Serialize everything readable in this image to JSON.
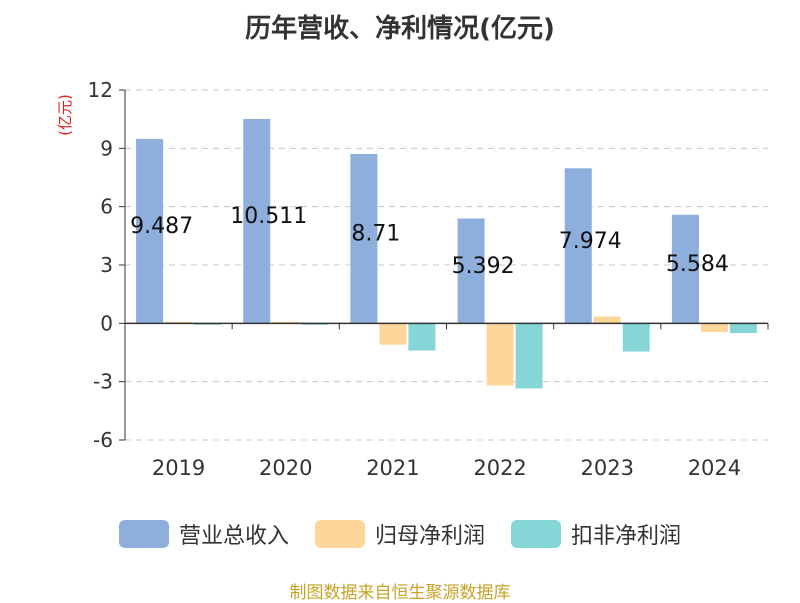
{
  "title": "历年营收、净利情况(亿元)",
  "source_note": "制图数据来自恒生聚源数据库",
  "chart_data": {
    "type": "bar",
    "title": "历年营收、净利情况(亿元)",
    "ylabel": "(亿元)",
    "xlabel": "",
    "ylim": [
      -6,
      12
    ],
    "yticks": [
      -6,
      -3,
      0,
      3,
      6,
      9,
      12
    ],
    "grid": true,
    "legend_position": "bottom",
    "categories": [
      "2019",
      "2020",
      "2021",
      "2022",
      "2023",
      "2024"
    ],
    "series": [
      {
        "name": "营业总收入",
        "color": "#8eaedb",
        "values": [
          9.487,
          10.511,
          8.71,
          5.392,
          7.974,
          5.584
        ],
        "data_labels": [
          "9.487",
          "10.511",
          "8.71",
          "5.392",
          "7.974",
          "5.584"
        ]
      },
      {
        "name": "归母净利润",
        "color": "#ffd699",
        "values": [
          0.08,
          0.08,
          -1.1,
          -3.2,
          0.35,
          -0.45
        ]
      },
      {
        "name": "扣非净利润",
        "color": "#86d6d8",
        "values": [
          -0.05,
          -0.07,
          -1.4,
          -3.35,
          -1.45,
          -0.5
        ]
      }
    ]
  }
}
